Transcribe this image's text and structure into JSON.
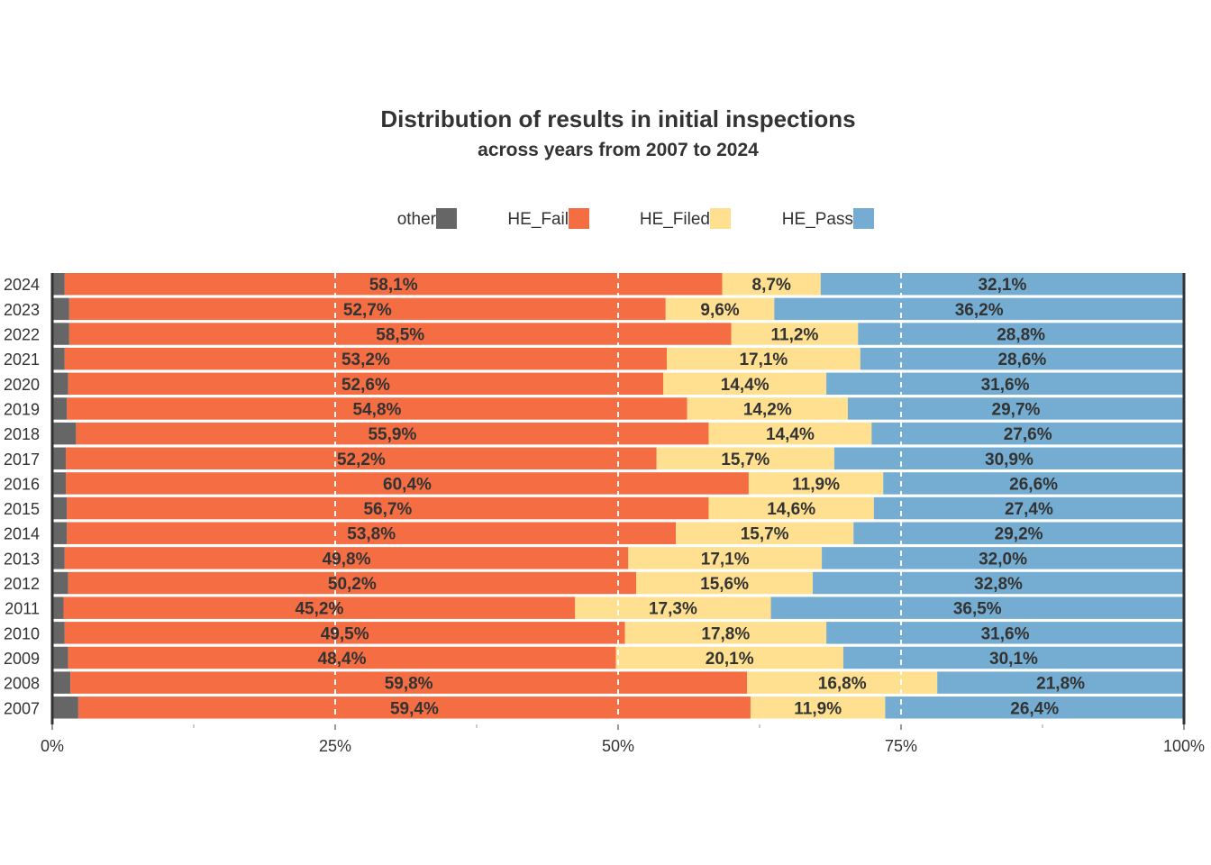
{
  "chart_data": {
    "type": "bar",
    "orientation": "horizontal",
    "stacked": "percent",
    "title": "Distribution of results in initial inspections",
    "subtitle": "across years from 2007 to 2024",
    "legend_position": "top",
    "categories": [
      "2024",
      "2023",
      "2022",
      "2021",
      "2020",
      "2019",
      "2018",
      "2017",
      "2016",
      "2015",
      "2014",
      "2013",
      "2012",
      "2011",
      "2010",
      "2009",
      "2008",
      "2007"
    ],
    "series": [
      {
        "name": "other",
        "color": "#666666",
        "values": [
          1.1,
          1.5,
          1.5,
          1.1,
          1.4,
          1.3,
          2.1,
          1.2,
          1.2,
          1.3,
          1.3,
          1.1,
          1.4,
          1.0,
          1.1,
          1.4,
          1.6,
          2.3
        ],
        "labels": [
          "",
          "",
          "",
          "",
          "",
          "",
          "",
          "",
          "",
          "",
          "",
          "",
          "",
          "",
          "",
          "",
          "",
          ""
        ]
      },
      {
        "name": "HE_Fail",
        "color": "#F46D43",
        "values": [
          58.1,
          52.7,
          58.5,
          53.2,
          52.6,
          54.8,
          55.9,
          52.2,
          60.4,
          56.7,
          53.8,
          49.8,
          50.2,
          45.2,
          49.5,
          48.4,
          59.8,
          59.4
        ],
        "labels": [
          "58,1%",
          "52,7%",
          "58,5%",
          "53,2%",
          "52,6%",
          "54,8%",
          "55,9%",
          "52,2%",
          "60,4%",
          "56,7%",
          "53,8%",
          "49,8%",
          "50,2%",
          "45,2%",
          "49,5%",
          "48,4%",
          "59,8%",
          "59,4%"
        ]
      },
      {
        "name": "HE_Filed",
        "color": "#FEE090",
        "values": [
          8.7,
          9.6,
          11.2,
          17.1,
          14.4,
          14.2,
          14.4,
          15.7,
          11.9,
          14.6,
          15.7,
          17.1,
          15.6,
          17.3,
          17.8,
          20.1,
          16.8,
          11.9
        ],
        "labels": [
          "8,7%",
          "9,6%",
          "11,2%",
          "17,1%",
          "14,4%",
          "14,2%",
          "14,4%",
          "15,7%",
          "11,9%",
          "14,6%",
          "15,7%",
          "17,1%",
          "15,6%",
          "17,3%",
          "17,8%",
          "20,1%",
          "16,8%",
          "11,9%"
        ]
      },
      {
        "name": "HE_Pass",
        "color": "#74ADD1",
        "values": [
          32.1,
          36.2,
          28.8,
          28.6,
          31.6,
          29.7,
          27.6,
          30.9,
          26.6,
          27.4,
          29.2,
          32.0,
          32.8,
          36.5,
          31.6,
          30.1,
          21.8,
          26.4
        ],
        "labels": [
          "32,1%",
          "36,2%",
          "28,8%",
          "28,6%",
          "31,6%",
          "29,7%",
          "27,6%",
          "30,9%",
          "26,6%",
          "27,4%",
          "29,2%",
          "32,0%",
          "32,8%",
          "36,5%",
          "31,6%",
          "30,1%",
          "21,8%",
          "26,4%"
        ]
      }
    ],
    "xlim": [
      0,
      100
    ],
    "x_ticks": [
      0,
      25,
      50,
      75,
      100
    ],
    "x_tick_labels": [
      "0%",
      "25%",
      "50%",
      "75%",
      "100%"
    ],
    "grid": "dashed white vertical lines at major ticks"
  }
}
